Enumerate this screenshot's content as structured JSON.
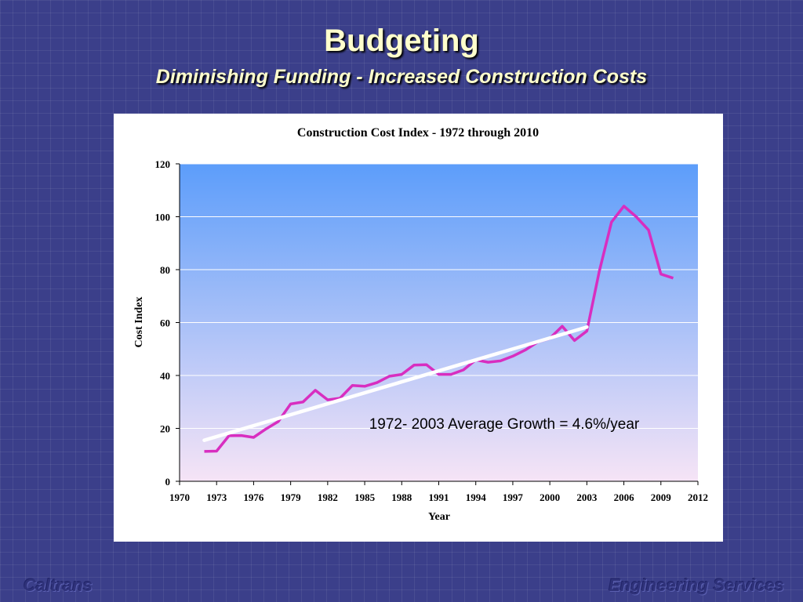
{
  "slide": {
    "title": "Budgeting",
    "subtitle": "Diminishing Funding  - Increased Construction Costs",
    "footer_left": "Caltrans",
    "footer_right": "Engineering Services"
  },
  "chart_data": {
    "type": "line",
    "title": "Construction Cost Index - 1972 through 2010",
    "xlabel": "Year",
    "ylabel": "Cost Index",
    "xlim": [
      1970,
      2012
    ],
    "ylim": [
      0,
      120
    ],
    "x_ticks": [
      "1970",
      "1973",
      "1976",
      "1979",
      "1982",
      "1985",
      "1988",
      "1991",
      "1994",
      "1997",
      "2000",
      "2003",
      "2006",
      "2009",
      "2012"
    ],
    "y_ticks": [
      "0",
      "20",
      "40",
      "60",
      "80",
      "100",
      "120"
    ],
    "gridlines": true,
    "legend": "none",
    "series": [
      {
        "color": "#d82ec0",
        "x": [
          1972,
          1973,
          1974,
          1975,
          1976,
          1977,
          1978,
          1979,
          1980,
          1981,
          1982,
          1983,
          1984,
          1985,
          1986,
          1987,
          1988,
          1989,
          1990,
          1991,
          1992,
          1993,
          1994,
          1995,
          1996,
          1997,
          1998,
          1999,
          2000,
          2001,
          2002,
          2003,
          2004,
          2005,
          2006,
          2007,
          2008,
          2009,
          2010
        ],
        "values": [
          11.3,
          11.4,
          17.2,
          17.3,
          16.6,
          19.8,
          22.6,
          29.2,
          30.0,
          34.4,
          30.8,
          31.4,
          36.2,
          35.9,
          37.3,
          39.7,
          40.4,
          43.9,
          44.1,
          40.4,
          40.4,
          42.1,
          45.9,
          45.0,
          45.5,
          47.3,
          49.6,
          52.6,
          54.0,
          58.6,
          53.2,
          56.8,
          79.2,
          98.0,
          104.0,
          100.0,
          95.0,
          78.3,
          76.8
        ]
      }
    ],
    "trendline": {
      "color": "#ffffff",
      "x": [
        1972,
        2003
      ],
      "values": [
        15.5,
        58.3
      ]
    },
    "annotation": "1972- 2003 Average Growth = 4.6%/year",
    "gradient_top": "#5c9dfa",
    "gradient_bottom": "#f6e4f6"
  }
}
